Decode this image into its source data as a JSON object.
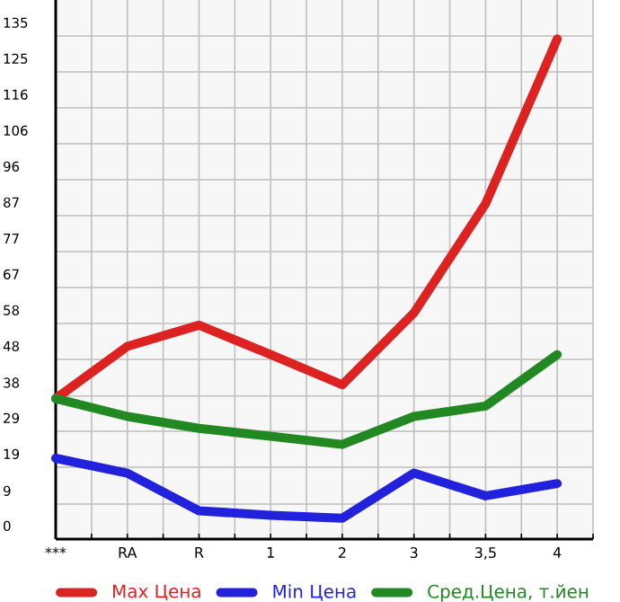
{
  "chart_data": {
    "type": "line",
    "categories": [
      "***",
      "RA",
      "R",
      "1",
      "2",
      "3",
      "3,5",
      "4"
    ],
    "series": [
      {
        "name": "Max Цена",
        "color": "#dd2222",
        "values": [
          37.7,
          51.7,
          57.4,
          49.5,
          41.4,
          60.7,
          90.0,
          134.2
        ]
      },
      {
        "name": "Min Цена",
        "color": "#2222dd",
        "values": [
          21.7,
          17.7,
          7.6,
          6.4,
          5.6,
          17.7,
          11.6,
          14.9
        ]
      },
      {
        "name": "Сред.Цена, т.йен",
        "color": "#228822",
        "values": [
          37.7,
          32.9,
          29.7,
          27.6,
          25.4,
          32.9,
          35.7,
          49.5
        ]
      }
    ],
    "ylim": [
      0,
      144.64
    ],
    "yticks": [
      0,
      {
        "value": 9.4,
        "label": "9"
      },
      {
        "value": 19.286,
        "label": "19"
      },
      {
        "value": 28.929,
        "label": "29"
      },
      {
        "value": 38.4,
        "label": "38"
      },
      {
        "value": 48.214,
        "label": "48"
      },
      {
        "value": 57.857,
        "label": "58"
      },
      {
        "value": 67.5,
        "label": "67"
      },
      {
        "value": 77.143,
        "label": "77"
      },
      {
        "value": 86.786,
        "label": "87"
      },
      {
        "value": 96.429,
        "label": "96"
      },
      {
        "value": 106.071,
        "label": "106"
      },
      {
        "value": 115.714,
        "label": "116"
      },
      {
        "value": 125.357,
        "label": "125"
      },
      {
        "value": 135,
        "label": "135"
      }
    ],
    "grid": true,
    "legend": "bottom",
    "marker": "none",
    "line_style": "solid"
  }
}
